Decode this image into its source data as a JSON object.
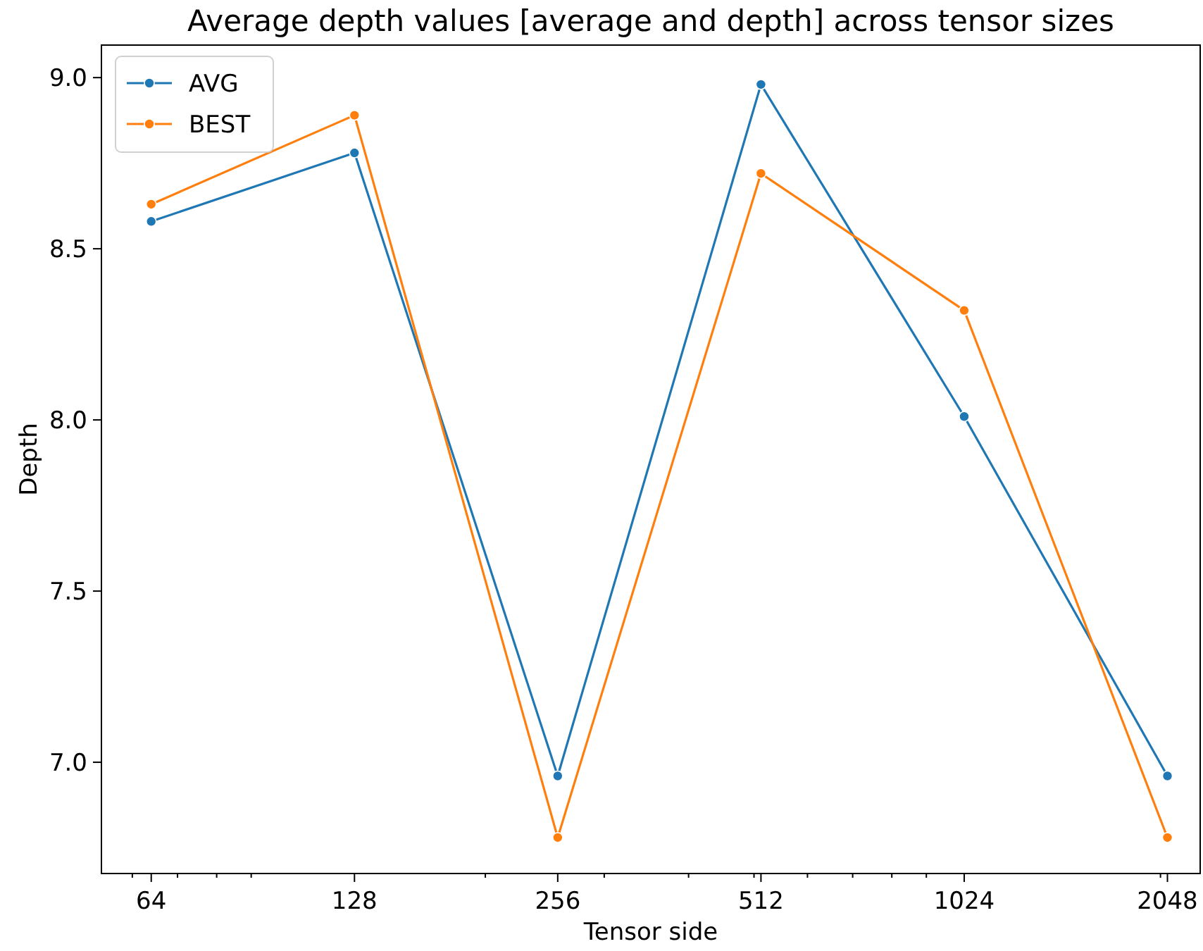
{
  "chart_data": {
    "type": "line",
    "title": "Average depth values [average and depth] across tensor sizes",
    "xlabel": "Tensor side",
    "ylabel": "Depth",
    "x": [
      64,
      128,
      256,
      512,
      1024,
      2048
    ],
    "series": [
      {
        "name": "AVG",
        "color": "#1f77b4",
        "values": [
          8.58,
          8.78,
          6.96,
          8.98,
          8.01,
          6.96
        ]
      },
      {
        "name": "BEST",
        "color": "#ff7f0e",
        "values": [
          8.63,
          8.89,
          6.78,
          8.72,
          8.32,
          6.78
        ]
      }
    ],
    "log": "x",
    "xlim": [
      54,
      2290
    ],
    "xticks": [
      64,
      128,
      256,
      512,
      1024,
      2048,
      {
        "value": 60,
        "label": null
      },
      {
        "value": 70,
        "label": null
      },
      {
        "value": 80,
        "label": null
      },
      {
        "value": 90,
        "label": null
      },
      {
        "value": 200,
        "label": null
      },
      {
        "value": 300,
        "label": null
      },
      {
        "value": 400,
        "label": null
      },
      {
        "value": 500,
        "label": null
      },
      {
        "value": 600,
        "label": null
      },
      {
        "value": 700,
        "label": null
      },
      {
        "value": 800,
        "label": null
      },
      {
        "value": 900,
        "label": null
      },
      {
        "value": 2000,
        "label": null
      }
    ],
    "ylim": [
      6.675,
      9.095
    ],
    "yticks": [
      {
        "value": 7,
        "label": "7.0"
      },
      {
        "value": 7.5,
        "label": "7.5"
      },
      {
        "value": 8,
        "label": "8.0"
      },
      {
        "value": 8.5,
        "label": "8.5"
      },
      {
        "value": 9,
        "label": "9.0"
      }
    ],
    "grid": false,
    "legend": "top left",
    "marker": "circle",
    "line_style": "solid"
  }
}
